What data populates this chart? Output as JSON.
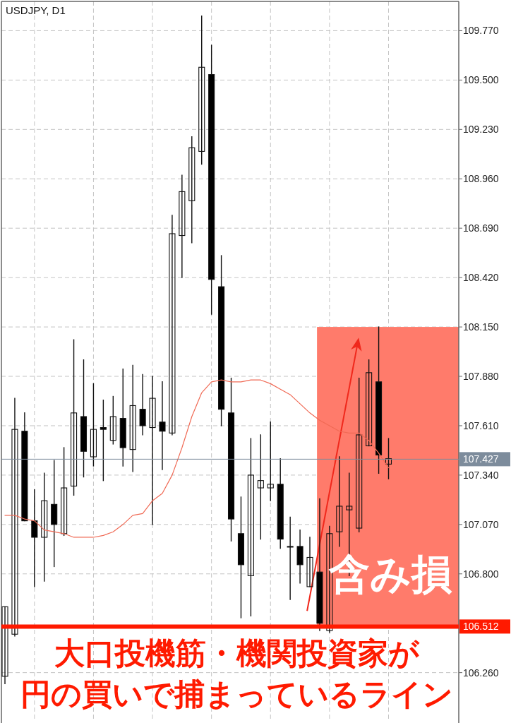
{
  "chart_data": {
    "type": "candlestick",
    "title": "USDJPY, D1",
    "categories": [
      null,
      null,
      null,
      null,
      null,
      null,
      null,
      null,
      null,
      null,
      null,
      null,
      null,
      null,
      null,
      null,
      null,
      null,
      null,
      null,
      null,
      null,
      null,
      null,
      null,
      null,
      null,
      null,
      null,
      null,
      null,
      null,
      null,
      null,
      null,
      null,
      null,
      null,
      null,
      null
    ],
    "ohlc": [
      [
        106.24,
        106.62,
        106.2,
        106.62
      ],
      [
        106.47,
        107.76,
        106.46,
        107.59
      ],
      [
        107.58,
        107.68,
        107.09,
        107.09
      ],
      [
        107.09,
        107.26,
        106.73,
        107.0
      ],
      [
        107.0,
        107.35,
        106.76,
        107.2
      ],
      [
        107.18,
        107.42,
        106.84,
        107.07
      ],
      [
        107.02,
        107.49,
        107.01,
        107.27
      ],
      [
        107.28,
        108.08,
        107.23,
        107.68
      ],
      [
        107.66,
        107.97,
        107.33,
        107.47
      ],
      [
        107.44,
        107.84,
        107.39,
        107.59
      ],
      [
        107.6,
        107.75,
        107.31,
        107.59
      ],
      [
        107.53,
        107.77,
        107.51,
        107.66
      ],
      [
        107.65,
        107.92,
        107.39,
        107.49
      ],
      [
        107.48,
        107.94,
        107.36,
        107.72
      ],
      [
        107.7,
        107.89,
        107.56,
        107.61
      ],
      [
        107.6,
        107.88,
        107.07,
        107.76
      ],
      [
        107.63,
        107.85,
        107.37,
        107.58
      ],
      [
        107.57,
        108.76,
        107.56,
        108.66
      ],
      [
        108.65,
        108.98,
        108.42,
        108.89
      ],
      [
        108.84,
        109.19,
        108.61,
        109.13
      ],
      [
        109.11,
        109.85,
        109.04,
        109.57
      ],
      [
        109.53,
        109.69,
        108.22,
        108.41
      ],
      [
        108.37,
        108.54,
        107.61,
        107.7
      ],
      [
        107.68,
        107.87,
        106.98,
        107.1
      ],
      [
        107.02,
        107.22,
        106.56,
        106.85
      ],
      [
        106.79,
        107.54,
        106.57,
        107.34
      ],
      [
        107.27,
        107.56,
        106.99,
        107.31
      ],
      [
        107.27,
        107.63,
        107.2,
        107.29
      ],
      [
        107.29,
        107.43,
        106.94,
        106.99
      ],
      [
        106.95,
        107.11,
        106.66,
        106.95
      ],
      [
        106.95,
        107.04,
        106.75,
        106.85
      ],
      [
        106.73,
        107.0,
        106.73,
        106.89
      ],
      [
        106.81,
        107.21,
        106.49,
        106.53
      ],
      [
        106.49,
        107.06,
        106.48,
        107.02
      ],
      [
        107.03,
        107.44,
        106.95,
        107.17
      ],
      [
        107.15,
        107.35,
        106.79,
        107.17
      ],
      [
        107.05,
        107.87,
        107.03,
        107.56
      ],
      [
        107.5,
        107.97,
        107.5,
        107.9
      ],
      [
        107.85,
        108.15,
        107.35,
        107.45
      ],
      [
        107.4,
        107.54,
        107.32,
        107.43
      ]
    ],
    "series": [
      {
        "type": "line",
        "color": "#f06a55",
        "values": [
          107.12,
          107.12,
          107.1,
          107.09,
          107.04,
          107.03,
          107.02,
          107.0,
          107.0,
          107.0,
          107.01,
          107.03,
          107.07,
          107.12,
          107.13,
          107.2,
          107.24,
          107.34,
          107.49,
          107.66,
          107.79,
          107.85,
          107.86,
          107.85,
          107.85,
          107.86,
          107.86,
          107.84,
          107.81,
          107.78,
          107.73,
          107.68,
          107.64,
          107.61,
          107.58,
          107.57,
          107.57,
          107.53,
          107.46,
          107.38
        ]
      }
    ],
    "ylim": [
      106.0,
      109.93
    ],
    "yticks": [
      {
        "value": 106.26,
        "label": "106.260"
      },
      {
        "value": 106.8,
        "label": "106.800"
      },
      {
        "value": 107.07,
        "label": "107.070"
      },
      {
        "value": 107.34,
        "label": "107.340"
      },
      {
        "value": 107.61,
        "label": "107.610"
      },
      {
        "value": 107.88,
        "label": "107.880"
      },
      {
        "value": 108.15,
        "label": "108.150"
      },
      {
        "value": 108.42,
        "label": "108.420"
      },
      {
        "value": 108.69,
        "label": "108.690"
      },
      {
        "value": 108.96,
        "label": "108.960"
      },
      {
        "value": 109.23,
        "label": "109.230"
      },
      {
        "value": 109.5,
        "label": "109.500"
      },
      {
        "value": 109.77,
        "label": "109.770"
      }
    ],
    "grid": true,
    "tick_labels": "y",
    "ref_lines": [
      {
        "axis": "y",
        "value": 107.427,
        "label": "107.427",
        "color": "#7d8c9c"
      },
      {
        "axis": "y",
        "value": 106.512,
        "label": "106.512",
        "color": "#ff1a00"
      }
    ],
    "bands": [
      {
        "axis": "y",
        "from": 106.512,
        "to": 108.15,
        "label": "含み損",
        "color": "#ff7b6b"
      }
    ],
    "annotations": [
      "大口投機筋・機関投資家が",
      "円の買いで捕まっているライン"
    ]
  }
}
